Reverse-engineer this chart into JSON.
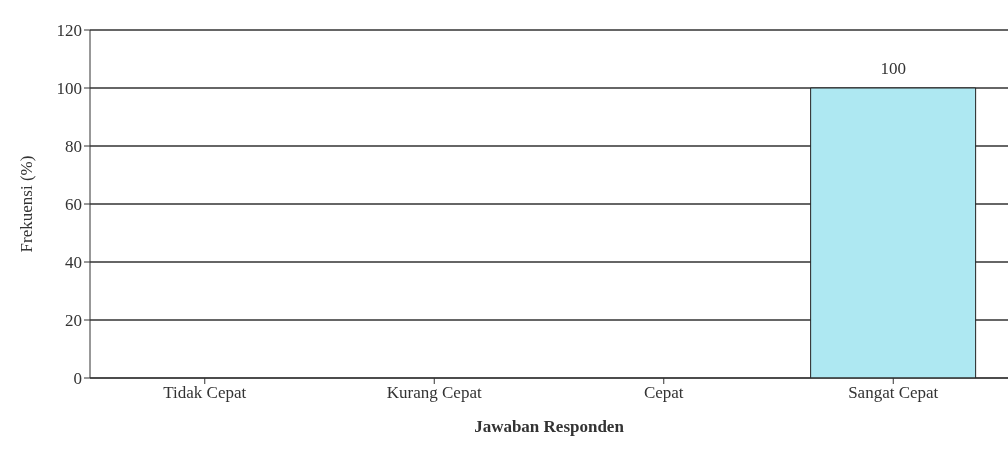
{
  "chart_data": {
    "type": "bar",
    "xlabel": "Jawaban Responden",
    "ylabel": "Frekuensi (%)",
    "categories": [
      "Tidak Cepat",
      "Kurang Cepat",
      "Cepat",
      "Sangat Cepat"
    ],
    "values": [
      0,
      0,
      0,
      100
    ],
    "color": "#aee8f2",
    "value_labels": [
      null,
      null,
      null,
      "100"
    ],
    "ylim": [
      0,
      120
    ],
    "yticks": [
      0,
      20,
      40,
      60,
      80,
      100,
      120
    ],
    "grid": "y"
  }
}
